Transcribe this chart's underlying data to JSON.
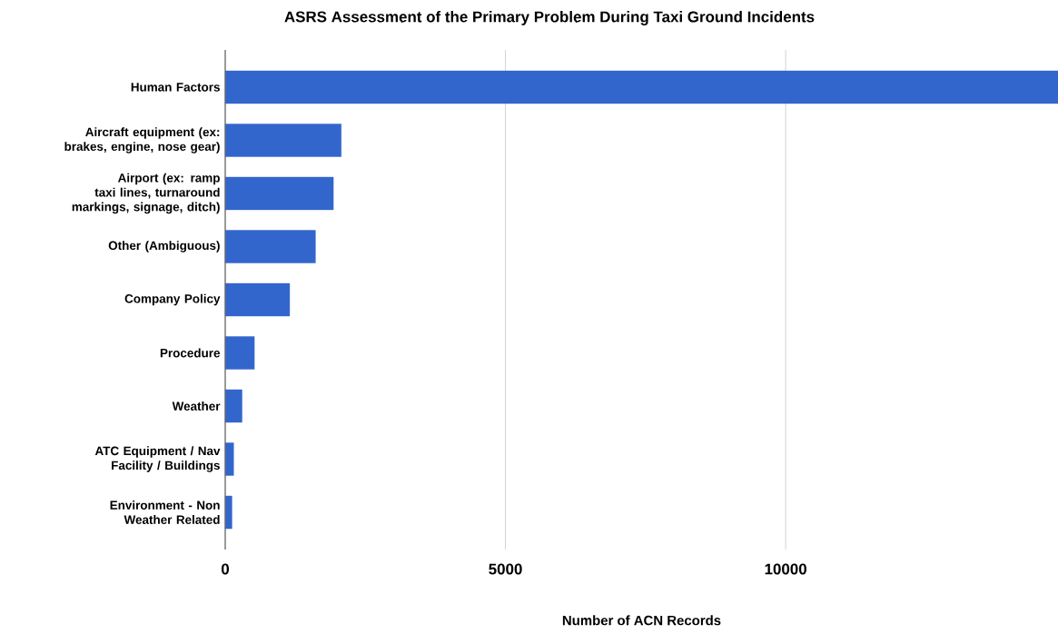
{
  "chart_data": {
    "type": "bar",
    "orientation": "horizontal",
    "title": "ASRS Assessment of the Primary Problem During Taxi Ground Incidents",
    "xlabel": "Number of ACN Records",
    "categories": [
      "Human Factors",
      "Aircraft equipment (ex: brakes, engine, nose gear)",
      "Airport (ex: ramp taxi lines, turnaround markings, signage, ditch)",
      "Other (Ambiguous)",
      "Company Policy",
      "Procedure",
      "Weather",
      "ATC Equipment / Nav Facility / Buildings",
      "Environment - Non Weather Related"
    ],
    "values": [
      14860,
      2070,
      1930,
      1610,
      1150,
      520,
      300,
      150,
      120
    ],
    "color": "#3366cc",
    "xlim": [
      0,
      14860
    ],
    "xticks": [
      0,
      5000,
      10000
    ],
    "grid": "x"
  }
}
